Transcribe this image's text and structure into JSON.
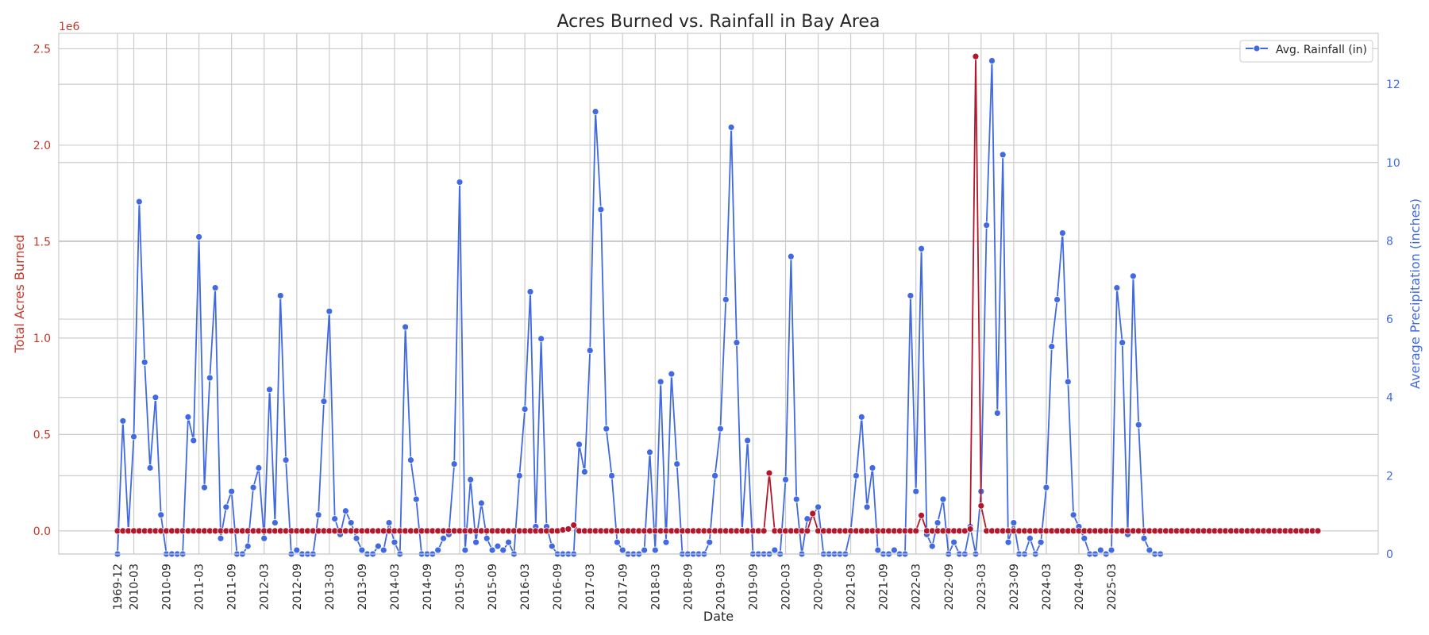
{
  "chart_data": {
    "type": "line",
    "title": "Acres Burned vs. Rainfall in Bay Area",
    "xlabel": "Date",
    "ylabel_left": "Total Acres Burned",
    "ylabel_right": "Average Precipitation (inches)",
    "left_offset_label": "1e6",
    "ylim_left": [
      -120000,
      2580000
    ],
    "ylim_right": [
      0,
      13.3
    ],
    "yticks_left": [
      0,
      500000,
      1000000,
      1500000,
      2000000,
      2500000
    ],
    "yticks_left_labels": [
      "0.0",
      "0.5",
      "1.0",
      "1.5",
      "2.0",
      "2.5"
    ],
    "yticks_right": [
      0,
      2,
      4,
      6,
      8,
      10,
      12
    ],
    "yticks_right_labels": [
      "0",
      "2",
      "4",
      "6",
      "8",
      "10",
      "12"
    ],
    "xtick_labels": [
      "1969-12",
      "2010-03",
      "2010-09",
      "2011-03",
      "2011-09",
      "2012-03",
      "2012-09",
      "2013-03",
      "2013-09",
      "2014-03",
      "2014-09",
      "2015-03",
      "2015-09",
      "2016-03",
      "2016-09",
      "2017-03",
      "2017-09",
      "2018-03",
      "2018-09",
      "2019-03",
      "2019-09",
      "2020-03",
      "2020-09",
      "2021-03",
      "2021-09",
      "2022-03",
      "2022-09",
      "2023-03",
      "2023-09",
      "2024-03",
      "2024-09",
      "2025-03"
    ],
    "grid": true,
    "legend_position": "top-right",
    "colors": {
      "acres": "#b2182b",
      "rainfall": "#4169e1",
      "left_axis_text": "#c0392b",
      "right_axis_text": "#4169e1"
    },
    "series": [
      {
        "name": "",
        "axis": "left",
        "values": [
          0,
          0,
          0,
          0,
          0,
          0,
          0,
          0,
          0,
          0,
          0,
          0,
          0,
          0,
          0,
          0,
          0,
          0,
          0,
          0,
          0,
          0,
          0,
          0,
          0,
          0,
          0,
          0,
          0,
          0,
          0,
          0,
          0,
          0,
          0,
          0,
          0,
          0,
          0,
          0,
          0,
          0,
          0,
          0,
          0,
          0,
          0,
          0,
          0,
          0,
          0,
          0,
          0,
          0,
          0,
          0,
          0,
          0,
          0,
          0,
          0,
          0,
          0,
          0,
          0,
          0,
          0,
          0,
          0,
          0,
          0,
          0,
          0,
          0,
          0,
          0,
          0,
          0,
          0,
          0,
          0,
          0,
          5000,
          10000,
          30000,
          0,
          0,
          0,
          0,
          0,
          0,
          0,
          0,
          0,
          0,
          0,
          0,
          0,
          0,
          0,
          0,
          0,
          0,
          0,
          0,
          0,
          0,
          0,
          0,
          0,
          0,
          0,
          0,
          0,
          0,
          0,
          0,
          0,
          0,
          0,
          300000,
          0,
          0,
          0,
          0,
          0,
          0,
          0,
          90000,
          0,
          0,
          0,
          0,
          0,
          0,
          0,
          0,
          0,
          0,
          0,
          0,
          0,
          0,
          0,
          0,
          0,
          0,
          0,
          80000,
          0,
          0,
          0,
          0,
          0,
          0,
          0,
          0,
          10000,
          2460000,
          130000,
          0,
          0,
          0,
          0,
          0,
          0,
          0,
          0,
          0,
          0,
          0,
          0,
          0,
          0,
          0,
          0,
          0,
          0,
          0,
          0,
          0,
          0,
          0,
          0,
          0,
          0,
          0,
          0,
          0,
          0,
          0,
          0,
          0,
          0,
          0,
          0,
          0,
          0,
          0,
          0,
          0,
          0,
          0,
          0,
          0,
          0,
          0,
          0,
          0,
          0,
          0,
          0,
          0,
          0,
          0,
          0,
          0,
          0,
          0,
          0,
          0,
          0
        ]
      },
      {
        "name": "Avg. Rainfall (in)",
        "axis": "right",
        "values": [
          0,
          3.4,
          0.6,
          3.0,
          9.0,
          4.9,
          2.2,
          4.0,
          1.0,
          0,
          0,
          0,
          0,
          3.5,
          2.9,
          8.1,
          1.7,
          4.5,
          6.8,
          0.4,
          1.2,
          1.6,
          0,
          0,
          0.2,
          1.7,
          2.2,
          0.4,
          4.2,
          0.8,
          6.6,
          2.4,
          0,
          0.1,
          0,
          0,
          0,
          1.0,
          3.9,
          6.2,
          0.9,
          0.5,
          1.1,
          0.8,
          0.4,
          0.1,
          0,
          0,
          0.2,
          0.1,
          0.8,
          0.3,
          0,
          5.8,
          2.4,
          1.4,
          0,
          0,
          0,
          0.1,
          0.4,
          0.5,
          2.3,
          9.5,
          0.1,
          1.9,
          0.3,
          1.3,
          0.4,
          0.1,
          0.2,
          0.1,
          0.3,
          0,
          2.0,
          3.7,
          6.7,
          0.7,
          5.5,
          0.7,
          0.2,
          0,
          0,
          0,
          0,
          2.8,
          2.1,
          5.2,
          11.3,
          8.8,
          3.2,
          2.0,
          0.3,
          0.1,
          0,
          0,
          0,
          0.1,
          2.6,
          0.1,
          4.4,
          0.3,
          4.6,
          2.3,
          0,
          0,
          0,
          0,
          0,
          0.3,
          2.0,
          3.2,
          6.5,
          10.9,
          5.4,
          0.6,
          2.9,
          0,
          0,
          0,
          0,
          0.1,
          0,
          1.9,
          7.6,
          1.4,
          0,
          0.9,
          1.0,
          1.2,
          0,
          0,
          0,
          0,
          0,
          0.6,
          2.0,
          3.5,
          1.2,
          2.2,
          0.1,
          0,
          0,
          0.1,
          0,
          0,
          6.6,
          1.6,
          7.8,
          0.5,
          0.2,
          0.8,
          1.4,
          0,
          0.3,
          0,
          0,
          0.7,
          0,
          1.6,
          8.4,
          12.6,
          3.6,
          10.2,
          0.3,
          0.8,
          0,
          0,
          0.4,
          0,
          0.3,
          1.7,
          5.3,
          6.5,
          8.2,
          4.4,
          1.0,
          0.7,
          0.4,
          0,
          0,
          0.1,
          0,
          0.1,
          6.8,
          5.4,
          0.5,
          7.1,
          3.3,
          0.4,
          0.1,
          0,
          0
        ]
      }
    ]
  }
}
